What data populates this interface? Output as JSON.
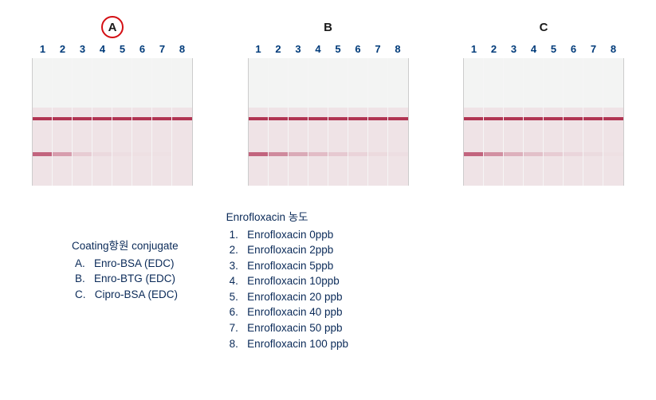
{
  "colors": {
    "circle_border": "#d40f14",
    "label_text": "#1a1a1a",
    "lane_num_text": "#003b7a",
    "legend_text": "#0a2a58",
    "strip_top_bg": "#f3f4f3",
    "strip_bottom_bg": "#efe3e6",
    "control_line": "#b13452",
    "test_line_base": "#c2647e"
  },
  "font_sizes": {
    "panel_label": 15,
    "lane_num": 13,
    "legend": 13.5
  },
  "panels": [
    {
      "label": "A",
      "circled": true,
      "test_opacities": [
        1.0,
        0.55,
        0.18,
        0.08,
        0.04,
        0.02,
        0.01,
        0.0
      ]
    },
    {
      "label": "B",
      "circled": false,
      "test_opacities": [
        1.0,
        0.7,
        0.45,
        0.3,
        0.2,
        0.12,
        0.07,
        0.03
      ]
    },
    {
      "label": "C",
      "circled": false,
      "test_opacities": [
        1.0,
        0.65,
        0.4,
        0.28,
        0.18,
        0.1,
        0.06,
        0.02
      ]
    }
  ],
  "lane_numbers": [
    "1",
    "2",
    "3",
    "4",
    "5",
    "6",
    "7",
    "8"
  ],
  "legend_coating": {
    "title": "Coating항원 conjugate",
    "items": [
      "A.   Enro-BSA (EDC)",
      "B.   Enro-BTG (EDC)",
      "C.   Cipro-BSA (EDC)"
    ]
  },
  "legend_conc": {
    "title": "Enrofloxacin 농도",
    "items": [
      "1.   Enrofloxacin 0ppb",
      "2.   Enrofloxacin 2ppb",
      "3.   Enrofloxacin 5ppb",
      "4.   Enrofloxacin 10ppb",
      "5.   Enrofloxacin 20 ppb",
      "6.   Enrofloxacin 40 ppb",
      "7.   Enrofloxacin 50 ppb",
      "8.   Enrofloxacin 100 ppb"
    ]
  }
}
